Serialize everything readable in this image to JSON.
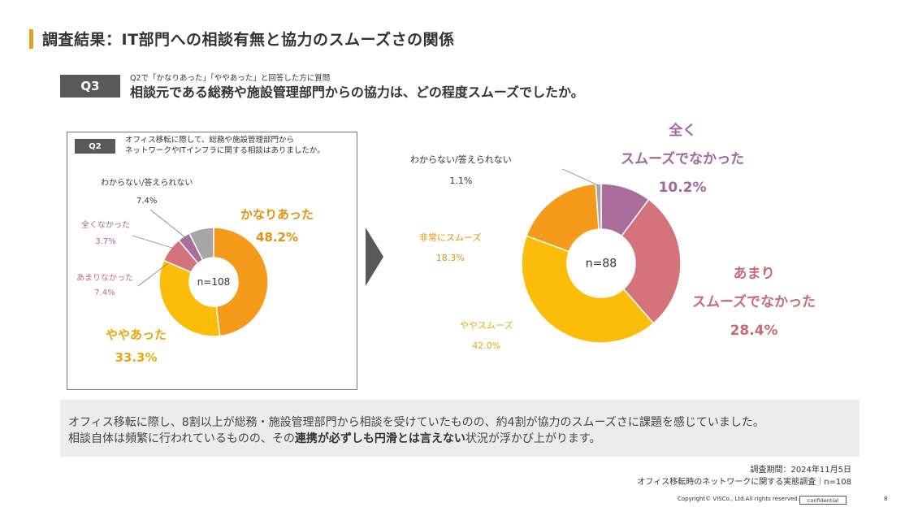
{
  "header": {
    "title": "調査結果：IT部門への相談有無と協力のスムーズさの関係"
  },
  "q3": {
    "badge": "Q3",
    "sub": "Q2で「かなりあった」「ややあった」と回答した方に質問",
    "question": "相談元である総務や施設管理部門からの協力は、どの程度スムーズでしたか。"
  },
  "q2": {
    "badge": "Q2",
    "question_line1": "オフィス移転に際して、総務や施設管理部門から",
    "question_line2": "ネットワークやITインフラに関する相談はありましたか。"
  },
  "chart_data": [
    {
      "type": "pie",
      "title": "Q2",
      "center_label": "n=108",
      "categories": [
        "かなりあった",
        "ややあった",
        "あまりなかった",
        "全くなかった",
        "わからない/答えられない"
      ],
      "values": [
        48.2,
        33.3,
        7.4,
        3.7,
        7.4
      ],
      "value_labels": [
        "48.2%",
        "33.3%",
        "7.4%",
        "3.7%",
        "7.4%"
      ],
      "colors": [
        "#f59a1b",
        "#fbbd0a",
        "#d4737a",
        "#ab6d9c",
        "#a6a6a6"
      ]
    },
    {
      "type": "pie",
      "title": "Q3",
      "center_label": "n=88",
      "categories": [
        "全く スムーズでなかった",
        "あまり スムーズでなかった",
        "ややスムーズ",
        "非常にスムーズ",
        "わからない/答えられない"
      ],
      "label_lines": [
        [
          "全く",
          "スムーズでなかった"
        ],
        [
          "あまり",
          "スムーズでなかった"
        ],
        [
          "ややスムーズ"
        ],
        [
          "非常にスムーズ"
        ],
        [
          "わからない/答えられない"
        ]
      ],
      "values": [
        10.2,
        28.4,
        42.0,
        18.3,
        1.1
      ],
      "value_labels": [
        "10.2%",
        "28.4%",
        "42.0%",
        "18.3%",
        "1.1%"
      ],
      "colors": [
        "#ab6d9c",
        "#d4737a",
        "#fbbd0a",
        "#f59a1b",
        "#a6a6a6"
      ]
    }
  ],
  "summary": {
    "line1": "オフィス移転に際し、8割以上が総務・施設管理部門から相談を受けていたものの、約4割が協力のスムーズさに課題を感じていました。",
    "line2_pre": "相談自体は頻繁に行われているものの、その",
    "line2_bold": "連携が必ずしも円滑とは言えない",
    "line2_post": "状況が浮かび上がります。"
  },
  "notes": {
    "period": "調査期間：2024年11月5日",
    "survey": "オフィス移転時のネットワークに関する実態調査｜n=108"
  },
  "footer": {
    "copyright": "Copyright© VISCo., Ltd.All rights reserved.",
    "confidential": "confidential",
    "page": "8"
  }
}
